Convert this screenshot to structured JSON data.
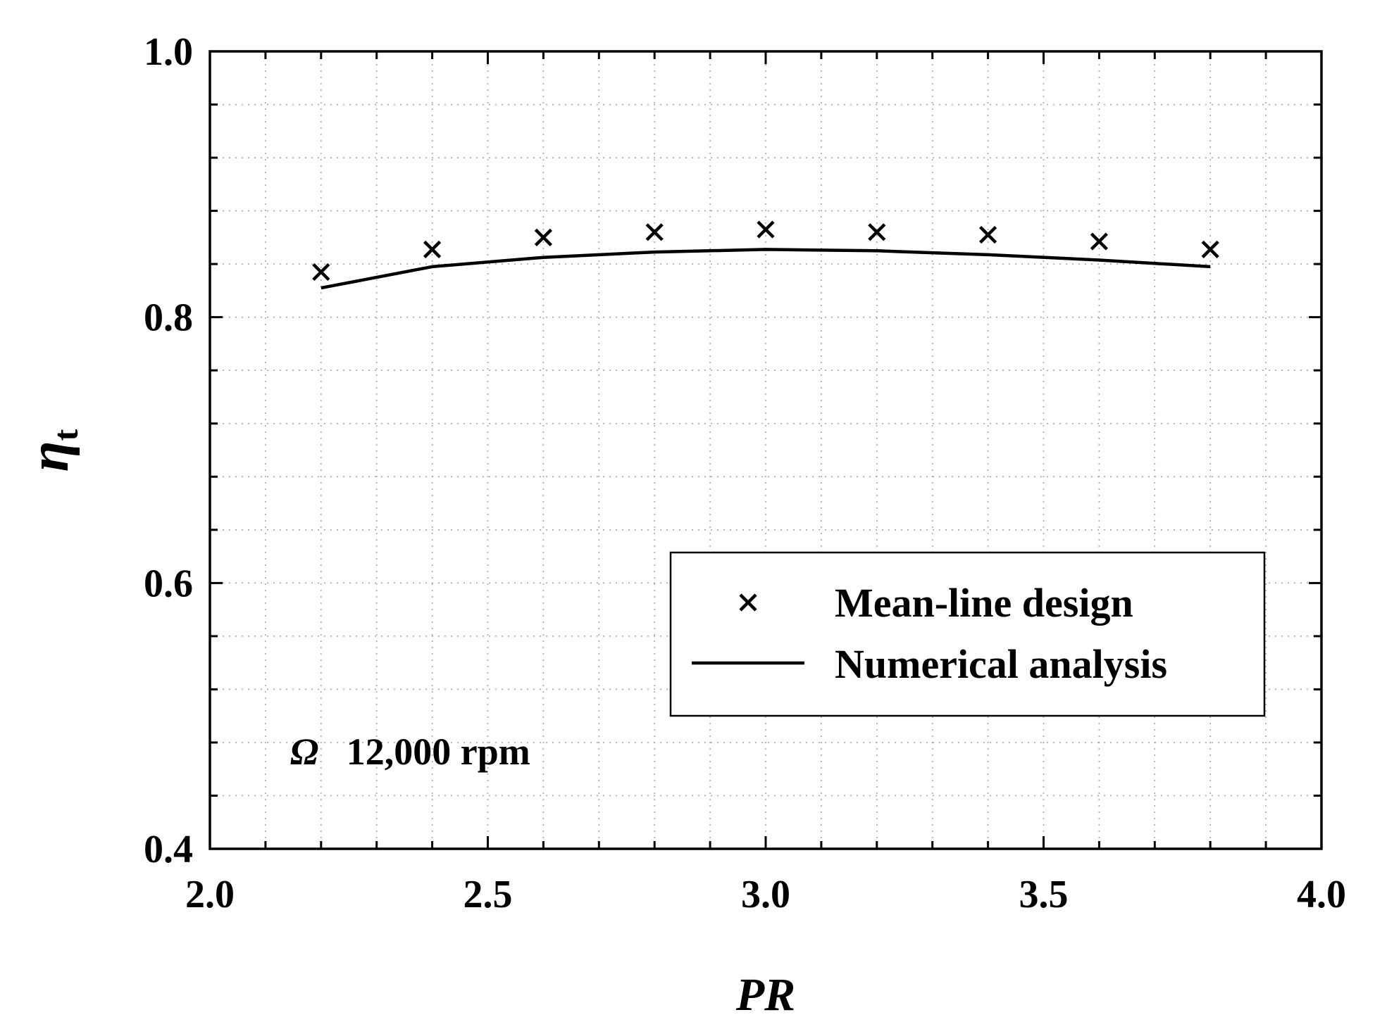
{
  "chart_data": {
    "type": "line",
    "x_axis": {
      "label": "PR",
      "range": [
        2.0,
        4.0
      ],
      "ticks": [
        2.0,
        2.5,
        3.0,
        3.5,
        4.0
      ],
      "tick_labels": [
        "2.0",
        "2.5",
        "3.0",
        "3.5",
        "4.0"
      ],
      "minor_step": 0.1
    },
    "y_axis": {
      "label_main": "η",
      "label_sub": "t",
      "range": [
        0.4,
        1.0
      ],
      "ticks": [
        0.4,
        0.6,
        0.8,
        1.0
      ],
      "tick_labels": [
        "0.4",
        "0.6",
        "0.8",
        "1.0"
      ],
      "minor_step": 0.04
    },
    "grid": true,
    "legend_position": "bottom-right",
    "annotation": {
      "symbol": "Ω",
      "text": "12,000 rpm"
    },
    "series": [
      {
        "name": "Mean-line design",
        "style": "markers",
        "marker": "x",
        "x": [
          2.2,
          2.4,
          2.6,
          2.8,
          3.0,
          3.2,
          3.4,
          3.6,
          3.8
        ],
        "y": [
          0.834,
          0.851,
          0.86,
          0.864,
          0.866,
          0.864,
          0.862,
          0.857,
          0.851
        ]
      },
      {
        "name": "Numerical analysis",
        "style": "line",
        "x": [
          2.2,
          2.4,
          2.6,
          2.8,
          3.0,
          3.2,
          3.4,
          3.6,
          3.8
        ],
        "y": [
          0.822,
          0.838,
          0.845,
          0.849,
          0.851,
          0.85,
          0.847,
          0.843,
          0.838
        ]
      }
    ]
  }
}
